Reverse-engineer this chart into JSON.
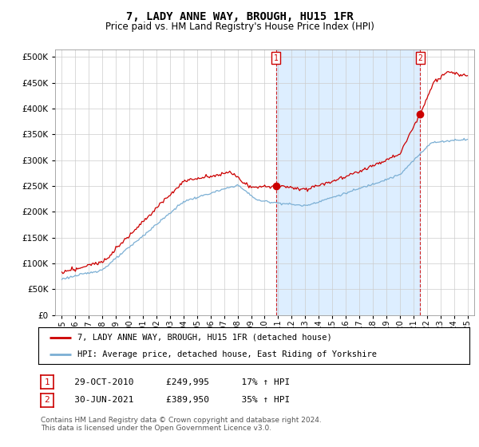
{
  "title": "7, LADY ANNE WAY, BROUGH, HU15 1FR",
  "subtitle": "Price paid vs. HM Land Registry's House Price Index (HPI)",
  "ytick_values": [
    0,
    50000,
    100000,
    150000,
    200000,
    250000,
    300000,
    350000,
    400000,
    450000,
    500000
  ],
  "ylim": [
    0,
    515000
  ],
  "xlim_start": 1994.5,
  "xlim_end": 2025.5,
  "red_line_color": "#cc0000",
  "blue_line_color": "#7bafd4",
  "shade_color": "#ddeeff",
  "marker1_x": 2010.83,
  "marker1_y": 249995,
  "marker2_x": 2021.5,
  "marker2_y": 389950,
  "legend_label_red": "7, LADY ANNE WAY, BROUGH, HU15 1FR (detached house)",
  "legend_label_blue": "HPI: Average price, detached house, East Riding of Yorkshire",
  "table_row1": [
    "1",
    "29-OCT-2010",
    "£249,995",
    "17% ↑ HPI"
  ],
  "table_row2": [
    "2",
    "30-JUN-2021",
    "£389,950",
    "35% ↑ HPI"
  ],
  "footer": "Contains HM Land Registry data © Crown copyright and database right 2024.\nThis data is licensed under the Open Government Licence v3.0.",
  "background_color": "#ffffff",
  "grid_color": "#cccccc",
  "title_fontsize": 10,
  "subtitle_fontsize": 8.5,
  "tick_fontsize": 7.5
}
